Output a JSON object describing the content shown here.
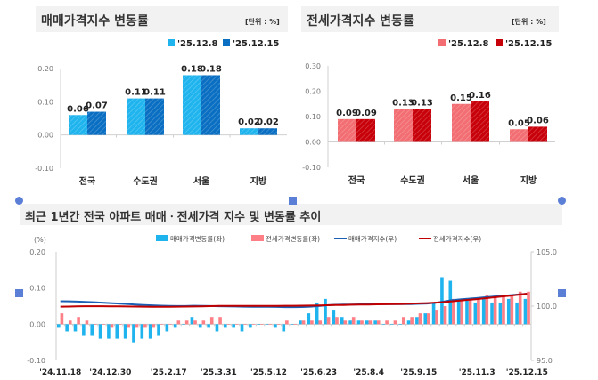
{
  "chart_data": [
    {
      "type": "bar",
      "title": "매매가격지수 변동률",
      "unit": "[단위 : %]",
      "categories": [
        "전국",
        "수도권",
        "서울",
        "지방"
      ],
      "series": [
        {
          "name": "'25.12.8",
          "values": [
            0.06,
            0.11,
            0.18,
            0.02
          ]
        },
        {
          "name": "'25.12.15",
          "values": [
            0.07,
            0.11,
            0.18,
            0.02
          ]
        }
      ],
      "ylim": [
        -0.1,
        0.2
      ],
      "yticks": [
        "0.20",
        "0.10",
        "0.00",
        "-0.10"
      ],
      "colors": [
        "#1fb4ee",
        "#0a6fc2"
      ],
      "legend": "top-right"
    },
    {
      "type": "bar",
      "title": "전세가격지수 변동률",
      "unit": "[단위 : %]",
      "categories": [
        "전국",
        "수도권",
        "서울",
        "지방"
      ],
      "series": [
        {
          "name": "'25.12.8",
          "values": [
            0.09,
            0.13,
            0.15,
            0.05
          ]
        },
        {
          "name": "'25.12.15",
          "values": [
            0.09,
            0.13,
            0.16,
            0.06
          ]
        }
      ],
      "ylim": [
        -0.1,
        0.3
      ],
      "yticks": [
        "0.30",
        "0.20",
        "0.10",
        "0.00",
        "-0.10"
      ],
      "colors": [
        "#f26e73",
        "#c8000a"
      ],
      "legend": "top-right"
    },
    {
      "type": "bar+line",
      "title": "최근 1년간 전국 아파트 매매ㆍ전세가격 지수 및 변동률 추이",
      "ylabel_left": "(%)",
      "ylim_left": [
        -0.1,
        0.2
      ],
      "yticks_left": [
        "0.20",
        "0.10",
        "0.00",
        "-0.10"
      ],
      "ylim_right": [
        95.0,
        105.0
      ],
      "yticks_right": [
        "105.0",
        "100.0",
        "95.0"
      ],
      "x_start": "2024-11-18",
      "x_end": "2025-12-15",
      "x_frequency": "weekly",
      "xtick_labels": [
        "'24.11.18",
        "'24.12.30",
        "'25.2.17",
        "'25.3.31",
        "'25.5.12",
        "'25.6.23",
        "'25.8.4",
        "'25.9.15",
        "'25.11.3",
        "'25.12.15"
      ],
      "xtick_weeks": [
        0,
        6,
        13,
        19,
        25,
        31,
        37,
        43,
        50,
        56
      ],
      "legend": "top-center",
      "series": [
        {
          "name": "매매가격변동률(좌)",
          "type": "bar",
          "axis": "left",
          "color": "#1fb4ee",
          "values": [
            -0.01,
            -0.02,
            -0.02,
            -0.03,
            -0.03,
            -0.04,
            -0.04,
            -0.04,
            -0.04,
            -0.05,
            -0.04,
            -0.04,
            -0.03,
            -0.02,
            -0.01,
            0.0,
            0.02,
            -0.01,
            -0.01,
            -0.02,
            -0.01,
            -0.01,
            -0.02,
            -0.01,
            0.0,
            0.0,
            -0.01,
            -0.02,
            0.0,
            0.01,
            0.03,
            0.06,
            0.07,
            0.04,
            0.02,
            0.01,
            0.01,
            0.01,
            0.01,
            0.0,
            0.0,
            0.0,
            0.01,
            0.02,
            0.03,
            0.06,
            0.13,
            0.12,
            0.07,
            0.07,
            0.06,
            0.07,
            0.06,
            0.06,
            0.07,
            0.06,
            0.07
          ]
        },
        {
          "name": "전세가격변동률(좌)",
          "type": "bar",
          "axis": "left",
          "color": "#ff7f86",
          "values": [
            0.03,
            0.01,
            0.02,
            0.01,
            0.0,
            0.0,
            -0.01,
            0.0,
            -0.01,
            -0.01,
            -0.01,
            -0.01,
            0.0,
            0.0,
            0.01,
            0.01,
            0.01,
            0.01,
            0.02,
            0.02,
            0.0,
            0.0,
            0.0,
            0.0,
            0.0,
            0.0,
            0.0,
            0.01,
            0.0,
            0.01,
            0.01,
            0.01,
            0.02,
            0.02,
            0.01,
            0.02,
            0.01,
            0.01,
            0.01,
            0.01,
            0.01,
            0.02,
            0.02,
            0.03,
            0.03,
            0.04,
            0.05,
            0.07,
            0.07,
            0.07,
            0.07,
            0.08,
            0.08,
            0.08,
            0.08,
            0.09,
            0.09
          ]
        },
        {
          "name": "매매가격지수(우)",
          "type": "line",
          "axis": "right",
          "color": "#1a5fb4",
          "values": [
            100.45,
            100.44,
            100.42,
            100.39,
            100.36,
            100.32,
            100.28,
            100.24,
            100.2,
            100.15,
            100.11,
            100.07,
            100.04,
            100.02,
            100.01,
            100.01,
            100.03,
            100.02,
            100.01,
            99.99,
            99.98,
            99.97,
            99.95,
            99.94,
            99.94,
            99.94,
            99.93,
            99.91,
            99.91,
            99.92,
            99.95,
            100.01,
            100.08,
            100.12,
            100.14,
            100.15,
            100.16,
            100.17,
            100.18,
            100.18,
            100.18,
            100.18,
            100.19,
            100.21,
            100.24,
            100.3,
            100.43,
            100.55,
            100.62,
            100.69,
            100.75,
            100.82,
            100.88,
            100.94,
            101.01,
            101.07,
            101.14
          ]
        },
        {
          "name": "전세가격지수(우)",
          "type": "line",
          "axis": "right",
          "color": "#c00000",
          "values": [
            99.95,
            99.96,
            99.98,
            99.99,
            99.99,
            99.99,
            99.98,
            99.98,
            99.97,
            99.96,
            99.95,
            99.94,
            99.94,
            99.94,
            99.95,
            99.96,
            99.97,
            99.98,
            100.0,
            100.02,
            100.02,
            100.02,
            100.02,
            100.02,
            100.02,
            100.02,
            100.02,
            100.03,
            100.03,
            100.04,
            100.05,
            100.06,
            100.08,
            100.1,
            100.11,
            100.13,
            100.14,
            100.15,
            100.16,
            100.17,
            100.18,
            100.2,
            100.22,
            100.25,
            100.28,
            100.32,
            100.37,
            100.44,
            100.51,
            100.58,
            100.65,
            100.73,
            100.81,
            100.89,
            100.97,
            101.06,
            101.15
          ]
        }
      ]
    }
  ]
}
